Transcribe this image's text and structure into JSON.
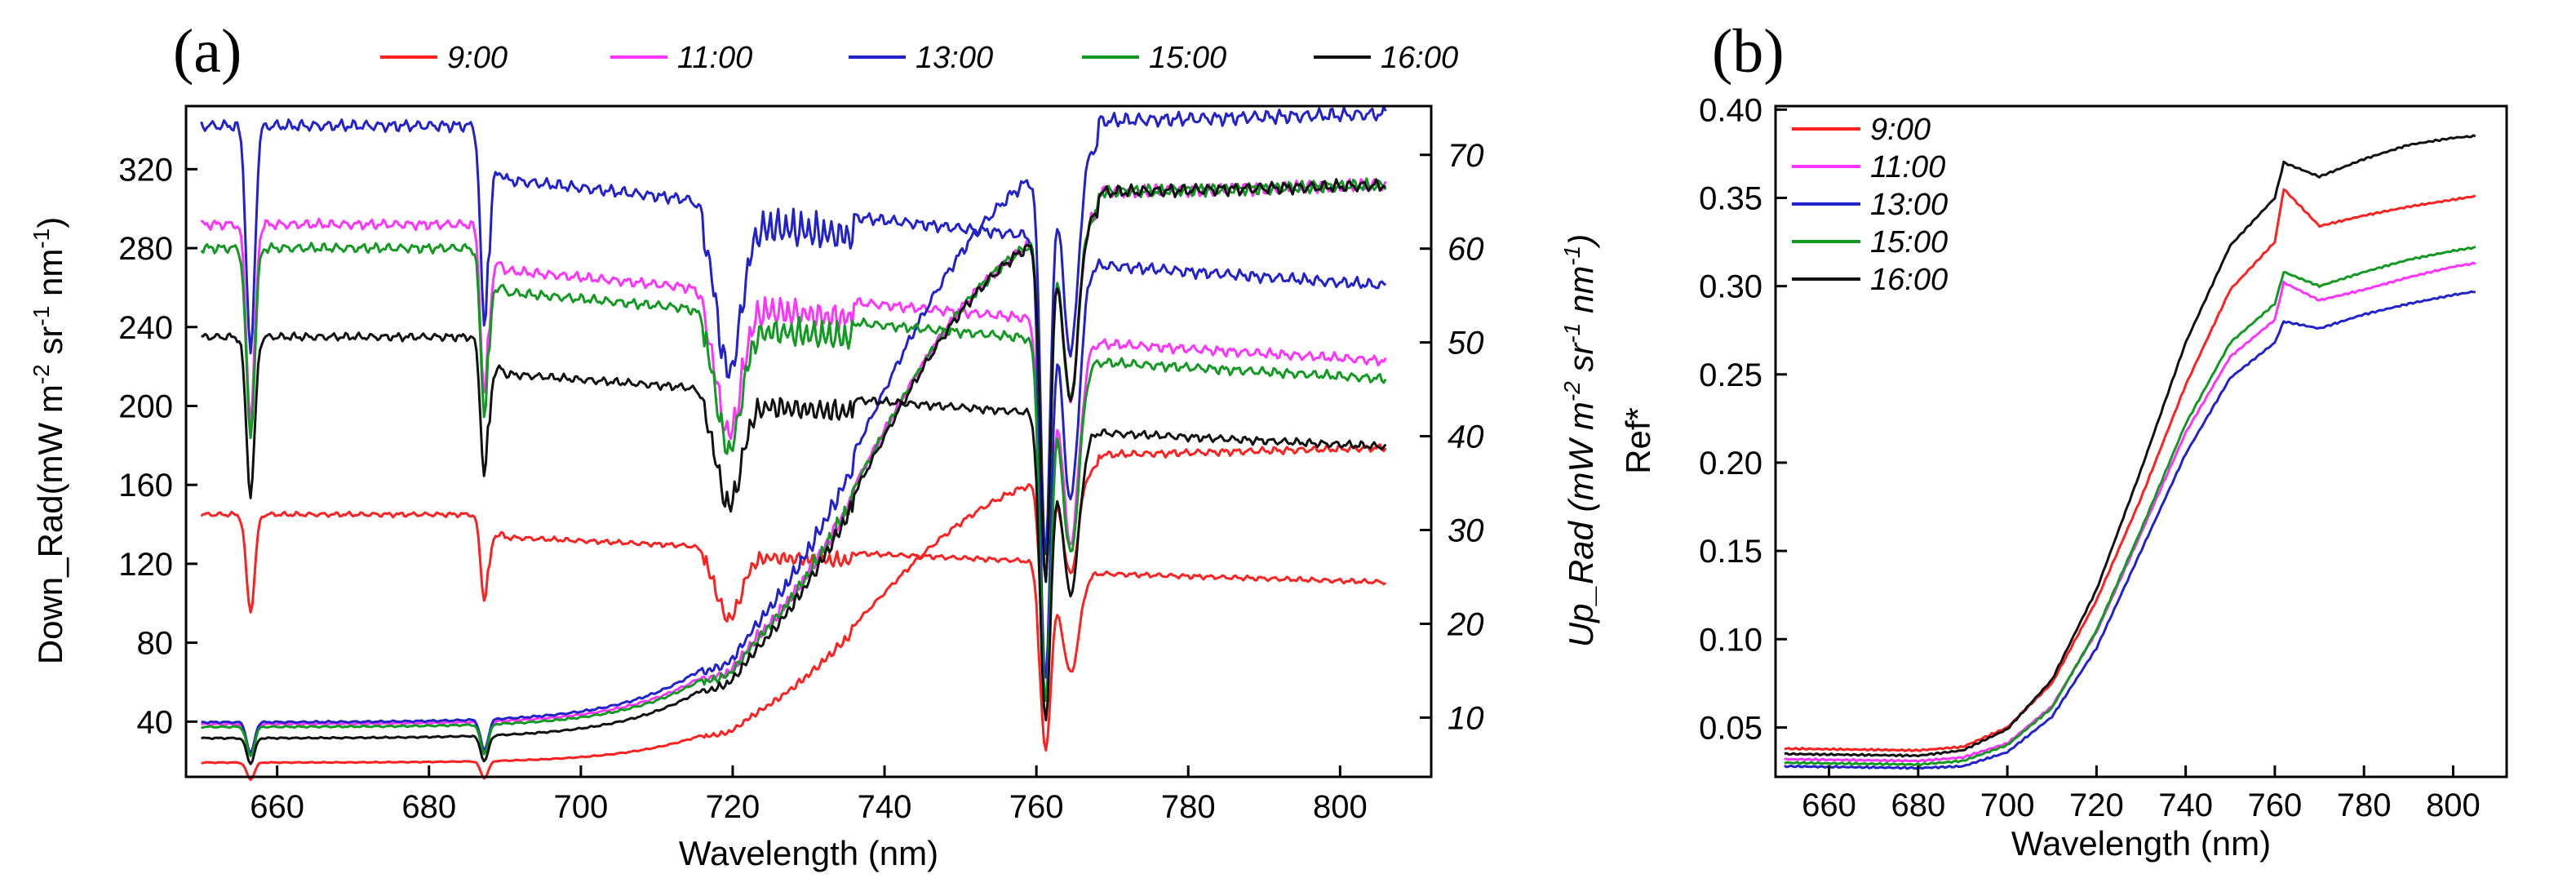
{
  "chart_data": [
    {
      "panel_label": "(a)",
      "type": "line",
      "xlabel": "Wavelength (nm)",
      "ylabel": "Down_Rad(mW m-2 sr-1 nm-1)",
      "ylabel_parts": {
        "a": "Down_Rad(mW m",
        "b": "-2",
        "c": " sr",
        "d": "-1",
        "e": " nm",
        "f": "-1",
        "g": ")"
      },
      "y2label": "Up_Rad (mW m-2 sr-1 nm-1)",
      "y2label_parts": {
        "a": "Up_Rad (mW m",
        "b": "-2",
        "c": " sr",
        "d": "-1",
        "e": " nm",
        "f": "-1",
        "g": ")"
      },
      "xlim": [
        648,
        812
      ],
      "ylim": [
        12,
        352
      ],
      "y2lim": [
        3.68,
        75.2
      ],
      "xticks": [
        "660",
        "680",
        "700",
        "720",
        "740",
        "760",
        "780",
        "800"
      ],
      "yticks": [
        "40",
        "80",
        "120",
        "160",
        "200",
        "240",
        "280",
        "320"
      ],
      "y2ticks": [
        "10",
        "20",
        "30",
        "40",
        "50",
        "60",
        "70"
      ],
      "legend_position": "top (above plot)",
      "series": [
        {
          "name": "9:00",
          "color": "#ff2020",
          "down_rad": {
            "base": 145,
            "solid_bin_to": 112
          },
          "up_rad": {
            "start": 5.2,
            "end": 38
          }
        },
        {
          "name": "11:00",
          "color": "#ff33ff",
          "down_rad": {
            "base": 292,
            "solid_bin_to": 212
          },
          "up_rad": {
            "start": 9.3,
            "end": 66
          }
        },
        {
          "name": "13:00",
          "color": "#2222cc",
          "down_rad": {
            "base": 342,
            "solid_bin_to": 250
          },
          "up_rad": {
            "start": 9.5,
            "end": 73.6
          }
        },
        {
          "name": "15:00",
          "color": "#119922",
          "down_rad": {
            "base": 280,
            "solid_bin_to": 205
          },
          "up_rad": {
            "start": 9.0,
            "end": 66
          }
        },
        {
          "name": "16:00",
          "color": "#111111",
          "down_rad": {
            "base": 235,
            "solid_bin_to": 178
          },
          "up_rad": {
            "start": 7.8,
            "end": 66
          }
        }
      ]
    },
    {
      "panel_label": "(b)",
      "type": "line",
      "xlabel": "Wavelength (nm)",
      "ylabel": "Ref*",
      "xlim": [
        648,
        812
      ],
      "ylim": [
        0.022,
        0.402
      ],
      "xticks": [
        "660",
        "680",
        "700",
        "720",
        "740",
        "760",
        "780",
        "800"
      ],
      "yticks": [
        "0.05",
        "0.10",
        "0.15",
        "0.20",
        "0.25",
        "0.30",
        "0.35",
        "0.40"
      ],
      "legend_position": "top-left",
      "series": [
        {
          "name": "9:00",
          "color": "#ff2020",
          "x": [
            650,
            680,
            690,
            700,
            710,
            720,
            730,
            740,
            750,
            760,
            762,
            770,
            780,
            790,
            800,
            805
          ],
          "y": [
            0.038,
            0.037,
            0.039,
            0.05,
            0.075,
            0.122,
            0.18,
            0.244,
            0.298,
            0.325,
            0.355,
            0.334,
            0.34,
            0.345,
            0.349,
            0.351
          ]
        },
        {
          "name": "11:00",
          "color": "#ff33ff",
          "x": [
            650,
            680,
            690,
            700,
            710,
            720,
            730,
            740,
            750,
            760,
            762,
            770,
            780,
            790,
            800,
            805
          ],
          "y": [
            0.032,
            0.031,
            0.033,
            0.041,
            0.062,
            0.104,
            0.16,
            0.217,
            0.26,
            0.281,
            0.302,
            0.292,
            0.298,
            0.305,
            0.311,
            0.313
          ]
        },
        {
          "name": "13:00",
          "color": "#2222cc",
          "x": [
            650,
            680,
            690,
            700,
            710,
            720,
            730,
            740,
            750,
            760,
            762,
            770,
            780,
            790,
            800,
            805
          ],
          "y": [
            0.028,
            0.027,
            0.028,
            0.036,
            0.056,
            0.095,
            0.15,
            0.205,
            0.248,
            0.268,
            0.28,
            0.276,
            0.284,
            0.29,
            0.295,
            0.297
          ]
        },
        {
          "name": "15:00",
          "color": "#119922",
          "x": [
            650,
            680,
            690,
            700,
            710,
            720,
            730,
            740,
            750,
            760,
            762,
            770,
            780,
            790,
            800,
            805
          ],
          "y": [
            0.03,
            0.029,
            0.031,
            0.04,
            0.061,
            0.105,
            0.162,
            0.222,
            0.268,
            0.29,
            0.308,
            0.3,
            0.308,
            0.315,
            0.32,
            0.322
          ]
        },
        {
          "name": "16:00",
          "color": "#111111",
          "x": [
            650,
            680,
            690,
            700,
            710,
            720,
            730,
            740,
            750,
            760,
            762,
            770,
            780,
            790,
            800,
            805
          ],
          "y": [
            0.035,
            0.034,
            0.037,
            0.049,
            0.077,
            0.128,
            0.196,
            0.268,
            0.323,
            0.35,
            0.37,
            0.362,
            0.372,
            0.38,
            0.384,
            0.385
          ]
        }
      ]
    }
  ]
}
